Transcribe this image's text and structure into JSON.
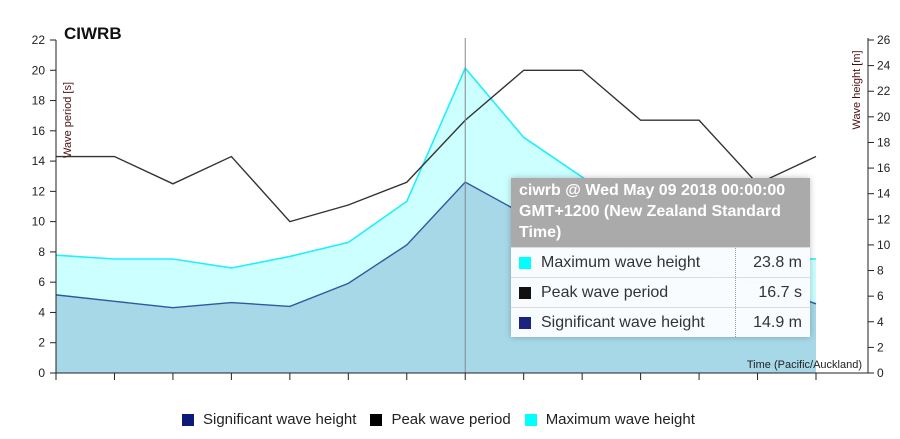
{
  "chart_data": {
    "type": "area",
    "title": "CIWRB",
    "xlabel": "Time (Pacific/Auckland)",
    "ylabel_left": "Wave period [s]",
    "ylabel_right": "Wave height [m]",
    "ylim_left": [
      0,
      22
    ],
    "ylim_right": [
      0,
      26
    ],
    "yticks_left": [
      "0",
      "2",
      "4",
      "6",
      "8",
      "10",
      "12",
      "14",
      "16",
      "18",
      "20",
      "22"
    ],
    "yticks_right": [
      "0",
      "2",
      "4",
      "6",
      "8",
      "10",
      "12",
      "14",
      "16",
      "18",
      "20",
      "22",
      "24",
      "26"
    ],
    "x_count": 14,
    "legend_position": "bottom",
    "grid": false,
    "series": [
      {
        "name": "Significant wave height",
        "axis": "right",
        "kind": "area",
        "color": "#1a237e",
        "values": [
          6.1,
          5.6,
          5.1,
          5.5,
          5.2,
          7.0,
          10.0,
          14.9,
          12.4,
          10.6,
          9.4,
          8.2,
          7.0,
          5.4
        ]
      },
      {
        "name": "Peak wave period",
        "axis": "left",
        "kind": "line",
        "color": "#111111",
        "values": [
          14.3,
          14.3,
          12.5,
          14.3,
          10.0,
          11.1,
          12.6,
          16.7,
          20.0,
          20.0,
          16.7,
          16.7,
          12.5,
          14.3
        ]
      },
      {
        "name": "Maximum wave height",
        "axis": "right",
        "kind": "area",
        "color": "#00ffff",
        "values": [
          9.2,
          8.9,
          8.9,
          8.2,
          9.1,
          10.2,
          13.4,
          23.8,
          18.4,
          15.3,
          12.0,
          10.0,
          9.0,
          8.9
        ]
      }
    ],
    "highlight_index": 7
  },
  "tooltip": {
    "header": "ciwrb @ Wed May 09 2018 00:00:00 GMT+1200 (New Zealand Standard Time)",
    "rows": [
      {
        "label": "Maximum wave height",
        "value": "23.8 m",
        "color": "#00ffff"
      },
      {
        "label": "Peak wave period",
        "value": "16.7 s",
        "color": "#111111"
      },
      {
        "label": "Significant wave height",
        "value": "14.9 m",
        "color": "#1a237e"
      }
    ]
  },
  "legend": [
    {
      "label": "Significant wave height",
      "color": "#0d1a7a"
    },
    {
      "label": "Peak wave period",
      "color": "#000000"
    },
    {
      "label": "Maximum wave height",
      "color": "#00ffff"
    }
  ]
}
